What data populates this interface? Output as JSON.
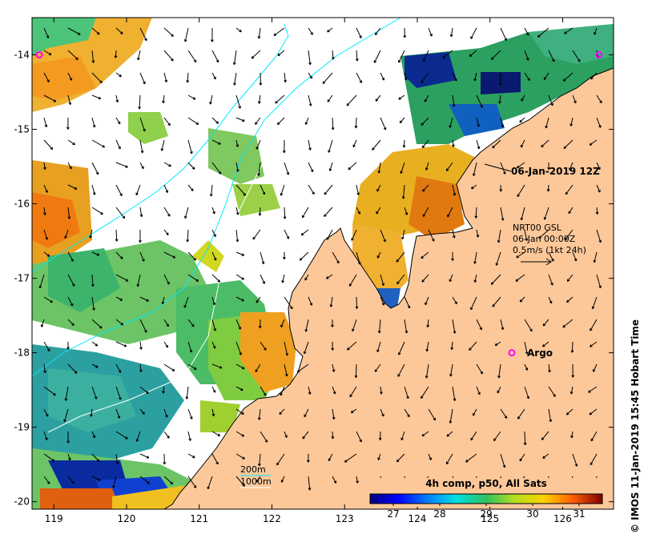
{
  "chart_data": {
    "type": "heatmap",
    "x_ticks": [
      "119",
      "120",
      "121",
      "122",
      "123",
      "124",
      "125",
      "126"
    ],
    "y_ticks": [
      "-14",
      "-15",
      "-16",
      "-17",
      "-18",
      "-19",
      "-20"
    ],
    "xlim": [
      118.7,
      126.7
    ],
    "ylim": [
      -20.1,
      -13.5
    ],
    "annotations": {
      "timestamp_label": "06-Jan-2019 12Z",
      "current_line1": "NRT00 GSL",
      "current_line2": "06-Jan 00:00Z",
      "current_line3": "0.5m/s (1kt 24h)",
      "argo_label": "Argo",
      "depth_200": "200m",
      "depth_1000": "1000m"
    },
    "argo_points": [
      {
        "lon": 118.8,
        "lat": -14.0
      },
      {
        "lon": 125.3,
        "lat": -18.0
      },
      {
        "lon": 126.5,
        "lat": -14.0
      }
    ],
    "colorbar": {
      "title": "4h comp, p50, All Sats",
      "range": [
        26.5,
        31.5
      ],
      "ticks": [
        "27",
        "28",
        "29",
        "30",
        "31"
      ],
      "unit_ticks": [
        27,
        28,
        29,
        30,
        31
      ]
    }
  },
  "credit": "© IMOS 11-Jan-2019 15:45 Hobart Time",
  "colors": {
    "land": "#fcc89a",
    "ocean_nodata": "#ffffff",
    "isobath_200": "#00e8ff",
    "isobath_1000": "#ffffff",
    "argo": "#ff00ff"
  }
}
